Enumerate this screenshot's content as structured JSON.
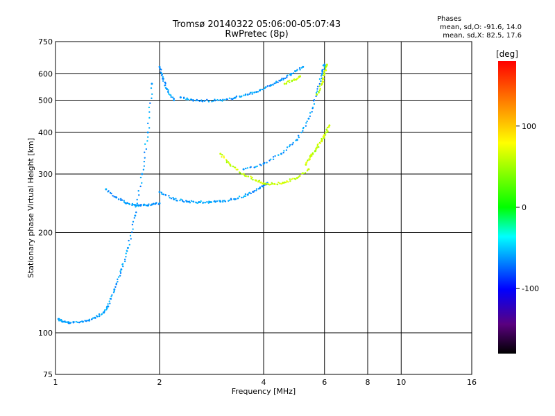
{
  "header": {
    "title_line1": "Tromsø 20140322 05:06:00-05:07:43",
    "title_line2": "RwPretec (8p)",
    "phases_label": "Phases",
    "stats_line1": "mean, sd,O: -91.6, 14.0",
    "stats_line2": "mean, sd,X:  82.5, 17.6"
  },
  "colorbar": {
    "label": "[deg]",
    "range": [
      -180,
      180
    ],
    "ticks": [
      100,
      0,
      -100
    ]
  },
  "chart_data": {
    "type": "scatter",
    "title": "Tromsø 20140322 05:06:00-05:07:43",
    "subtitle": "RwPretec (8p)",
    "xlabel": "Frequency [MHz]",
    "ylabel": "Stationary phase Virtual Height [km]",
    "x_scale": "log",
    "y_scale": "log",
    "xlim": [
      1,
      16
    ],
    "ylim": [
      75,
      750
    ],
    "x_ticks": [
      1,
      2,
      4,
      6,
      8,
      10,
      16
    ],
    "y_ticks": [
      75,
      100,
      200,
      300,
      400,
      500,
      600,
      750
    ],
    "grid": true,
    "color_scale": "phase [deg], rainbow, -180 to 180",
    "series": [
      {
        "name": "O",
        "mean_phase": -91.6,
        "sd_phase": 14.0,
        "traces": [
          {
            "x": [
              1.02,
              1.05,
              1.1,
              1.2,
              1.3,
              1.38,
              1.42,
              1.48,
              1.55,
              1.62,
              1.7,
              1.78,
              1.85,
              1.9
            ],
            "y": [
              110,
              108,
              107,
              108,
              111,
              115,
              120,
              135,
              155,
              180,
              225,
              300,
              400,
              560
            ]
          },
          {
            "x": [
              1.4,
              1.5,
              1.6,
              1.7,
              1.8,
              1.9,
              2.0
            ],
            "y": [
              270,
              255,
              245,
              242,
              242,
              243,
              245
            ]
          },
          {
            "x": [
              2.0,
              2.2,
              2.4,
              2.6,
              2.8,
              3.0,
              3.3,
              3.6,
              3.9,
              4.1
            ],
            "y": [
              265,
              252,
              248,
              247,
              247,
              248,
              252,
              260,
              272,
              282
            ]
          },
          {
            "x": [
              2.0,
              2.05,
              2.1,
              2.2
            ],
            "y": [
              630,
              580,
              540,
              500
            ]
          },
          {
            "x": [
              2.3,
              2.5,
              2.7,
              3.0,
              3.3,
              3.6,
              3.9,
              4.2,
              4.5,
              4.8,
              5.2
            ],
            "y": [
              510,
              500,
              498,
              500,
              508,
              520,
              535,
              555,
              575,
              600,
              630
            ]
          },
          {
            "x": [
              3.5,
              4.0,
              4.5,
              5.0,
              5.4,
              5.7,
              5.9,
              6.0
            ],
            "y": [
              310,
              322,
              345,
              380,
              440,
              520,
              600,
              640
            ]
          }
        ]
      },
      {
        "name": "X",
        "mean_phase": 82.5,
        "sd_phase": 17.6,
        "traces": [
          {
            "x": [
              3.0,
              3.2,
              3.5,
              3.8,
              4.0,
              4.3,
              4.6,
              5.0,
              5.4
            ],
            "y": [
              345,
              320,
              300,
              287,
              281,
              280,
              283,
              292,
              310
            ]
          },
          {
            "x": [
              5.3,
              5.5,
              5.7,
              5.9,
              6.05,
              6.2
            ],
            "y": [
              320,
              340,
              360,
              380,
              400,
              420
            ]
          },
          {
            "x": [
              4.6,
              4.9,
              5.1
            ],
            "y": [
              560,
              575,
              590
            ]
          },
          {
            "x": [
              5.7,
              5.9,
              6.0,
              6.1
            ],
            "y": [
              520,
              560,
              600,
              640
            ]
          }
        ]
      }
    ]
  }
}
